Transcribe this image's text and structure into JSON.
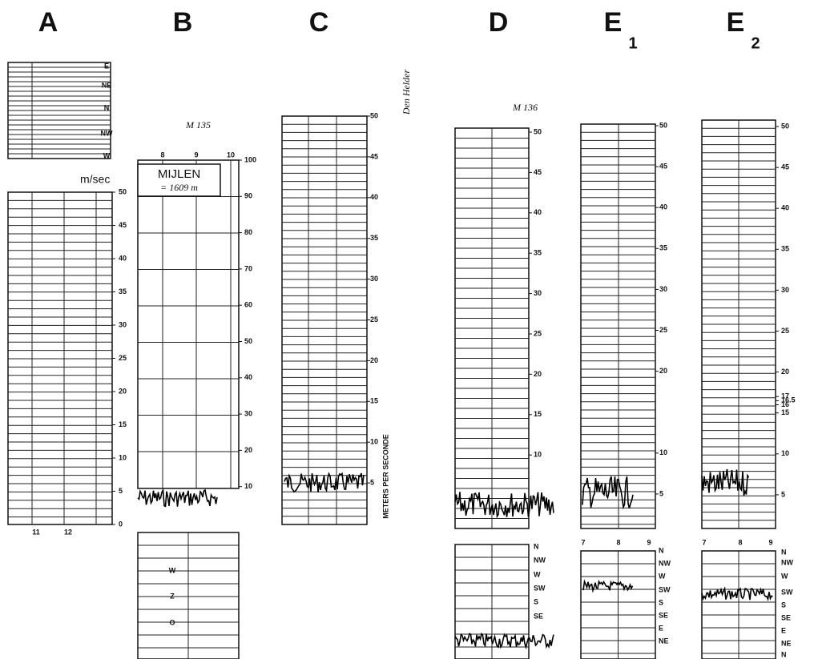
{
  "panels": [
    {
      "label": "A",
      "unit": "m/sec",
      "directions": [
        "E",
        "NE",
        "N",
        "NW",
        "W"
      ],
      "scale": [
        "50",
        "45",
        "40",
        "35",
        "30",
        "25",
        "20",
        "15",
        "10",
        "5",
        "0"
      ],
      "time": [
        "11",
        "12"
      ]
    },
    {
      "label": "B",
      "annotation": "M 135",
      "header": "MIJLEN",
      "subheader": "= 1609 m",
      "scale": [
        "100",
        "90",
        "80",
        "70",
        "60",
        "50",
        "40",
        "30",
        "20",
        "10"
      ],
      "time": [
        "8",
        "9",
        "10"
      ],
      "directions": [
        "W",
        "Z",
        "O"
      ]
    },
    {
      "label": "C",
      "scale": [
        "50",
        "45",
        "40",
        "35",
        "30",
        "25",
        "20",
        "15",
        "10",
        "5"
      ],
      "axis_label": "METERS PER SECONDE",
      "side_text": "Den Helder"
    },
    {
      "label": "D",
      "annotation": "M 136",
      "scale": [
        "50",
        "45",
        "40",
        "35",
        "30",
        "25",
        "20",
        "15",
        "10"
      ],
      "directions": [
        "N",
        "NW",
        "W",
        "SW",
        "S",
        "SE"
      ]
    },
    {
      "label": "E",
      "subscript": "1",
      "scale": [
        "50",
        "45",
        "40",
        "35",
        "30",
        "25",
        "20",
        "10",
        "5"
      ],
      "time": [
        "7",
        "8",
        "9"
      ],
      "directions": [
        "N",
        "NW",
        "W",
        "SW",
        "S",
        "SE",
        "E",
        "NE"
      ]
    },
    {
      "label": "E",
      "subscript": "2",
      "scale": [
        "50",
        "45",
        "40",
        "35",
        "30",
        "25",
        "20",
        "17",
        "16.5",
        "16",
        "15",
        "10",
        "5"
      ],
      "time": [
        "7",
        "8",
        "9"
      ],
      "directions": [
        "N",
        "NW",
        "W",
        "SW",
        "S",
        "SE",
        "E",
        "NE",
        "N"
      ]
    }
  ]
}
